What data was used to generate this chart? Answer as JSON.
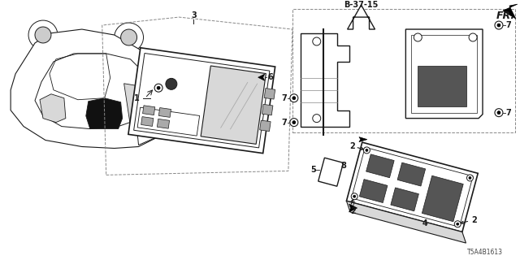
{
  "background_color": "#ffffff",
  "part_number": "T5A4B1613",
  "reference": "B-37-15",
  "direction_label": "FR.",
  "line_color": "#1a1a1a",
  "gray_light": "#d8d8d8",
  "gray_mid": "#aaaaaa",
  "gray_dark": "#555555"
}
